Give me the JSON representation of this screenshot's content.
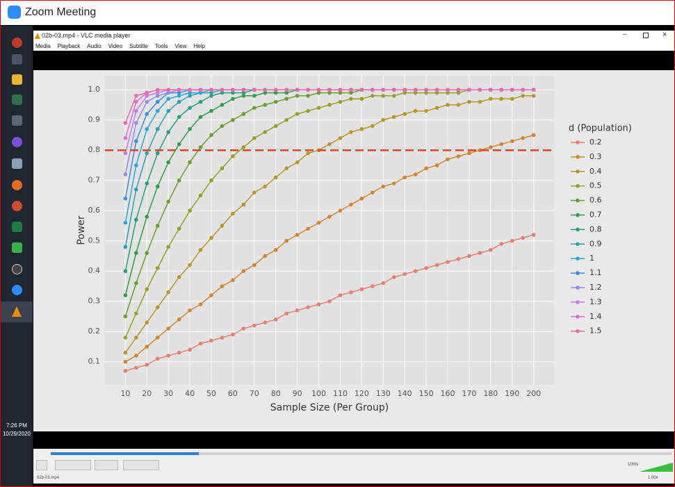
{
  "window": {
    "title": "Zoom Meeting"
  },
  "player": {
    "title": "02b-03.mp4 - VLC media player",
    "menu": [
      "Media",
      "Playback",
      "Audio",
      "Video",
      "Subtitle",
      "Tools",
      "View",
      "Help"
    ],
    "volume": "100%",
    "status_file": "02b-03.mp4",
    "speed": "1.00x"
  },
  "taskbar": {
    "time": "7:26 PM",
    "date": "10/29/2020"
  },
  "chart_data": {
    "type": "line",
    "x_label": "Sample Size (Per Group)",
    "y_label": "Power",
    "legend_title": "d (Population)",
    "x": [
      10,
      15,
      20,
      25,
      30,
      35,
      40,
      45,
      50,
      55,
      60,
      65,
      70,
      75,
      80,
      85,
      90,
      95,
      100,
      105,
      110,
      115,
      120,
      125,
      130,
      135,
      140,
      145,
      150,
      155,
      160,
      165,
      170,
      175,
      180,
      185,
      190,
      195,
      200
    ],
    "xlim": [
      0.5,
      209.5
    ],
    "xticks": [
      10,
      20,
      30,
      40,
      50,
      60,
      70,
      80,
      90,
      100,
      110,
      120,
      130,
      140,
      150,
      160,
      170,
      180,
      190,
      200
    ],
    "ylim": [
      0.0235,
      1.0465
    ],
    "yticks": [
      0.1,
      0.2,
      0.3,
      0.4,
      0.5,
      0.6,
      0.7,
      0.8,
      0.9,
      {
        "value": 1,
        "label": "1.0"
      }
    ],
    "grid": true,
    "legend": "right",
    "hline": {
      "value": 0.8,
      "color": "#e8401c"
    },
    "series": [
      {
        "name": "0.2",
        "color": "#e8806f",
        "values": [
          0.07,
          0.08,
          0.09,
          0.11,
          0.12,
          0.13,
          0.14,
          0.16,
          0.17,
          0.18,
          0.19,
          0.21,
          0.22,
          0.23,
          0.24,
          0.26,
          0.27,
          0.28,
          0.29,
          0.3,
          0.32,
          0.33,
          0.34,
          0.35,
          0.36,
          0.38,
          0.39,
          0.4,
          0.41,
          0.42,
          0.43,
          0.44,
          0.45,
          0.46,
          0.47,
          0.49,
          0.5,
          0.51,
          0.52
        ]
      },
      {
        "name": "0.3",
        "color": "#d4862f",
        "values": [
          0.1,
          0.12,
          0.15,
          0.18,
          0.21,
          0.24,
          0.27,
          0.29,
          0.32,
          0.35,
          0.37,
          0.4,
          0.42,
          0.45,
          0.47,
          0.5,
          0.52,
          0.54,
          0.56,
          0.58,
          0.6,
          0.62,
          0.64,
          0.66,
          0.68,
          0.69,
          0.71,
          0.72,
          0.74,
          0.75,
          0.77,
          0.78,
          0.79,
          0.8,
          0.81,
          0.82,
          0.83,
          0.84,
          0.85
        ]
      },
      {
        "name": "0.4",
        "color": "#b8972a",
        "values": [
          0.13,
          0.18,
          0.23,
          0.28,
          0.33,
          0.38,
          0.42,
          0.47,
          0.51,
          0.55,
          0.59,
          0.62,
          0.66,
          0.68,
          0.71,
          0.74,
          0.76,
          0.79,
          0.8,
          0.82,
          0.84,
          0.86,
          0.87,
          0.88,
          0.9,
          0.91,
          0.92,
          0.93,
          0.93,
          0.94,
          0.95,
          0.95,
          0.96,
          0.96,
          0.97,
          0.97,
          0.97,
          0.98,
          0.98
        ]
      },
      {
        "name": "0.5",
        "color": "#97a027",
        "values": [
          0.18,
          0.26,
          0.34,
          0.41,
          0.48,
          0.54,
          0.6,
          0.65,
          0.7,
          0.74,
          0.78,
          0.81,
          0.84,
          0.86,
          0.88,
          0.9,
          0.92,
          0.93,
          0.94,
          0.95,
          0.96,
          0.97,
          0.97,
          0.98,
          0.98,
          0.98,
          0.99,
          0.99,
          0.99,
          0.99,
          0.99,
          0.99,
          1,
          1,
          1,
          1,
          1,
          1,
          1
        ]
      },
      {
        "name": "0.6",
        "color": "#6a9e2d",
        "values": [
          0.25,
          0.36,
          0.46,
          0.55,
          0.63,
          0.7,
          0.76,
          0.81,
          0.85,
          0.88,
          0.9,
          0.92,
          0.94,
          0.95,
          0.96,
          0.97,
          0.98,
          0.98,
          0.99,
          0.99,
          0.99,
          0.99,
          1,
          1,
          1,
          1,
          1,
          1,
          1,
          1,
          1,
          1,
          1,
          1,
          1,
          1,
          1,
          1,
          1
        ]
      },
      {
        "name": "0.7",
        "color": "#2e9e4a",
        "values": [
          0.32,
          0.46,
          0.58,
          0.68,
          0.76,
          0.82,
          0.87,
          0.91,
          0.93,
          0.95,
          0.97,
          0.98,
          0.98,
          0.99,
          0.99,
          0.99,
          1,
          1,
          1,
          1,
          1,
          1,
          1,
          1,
          1,
          1,
          1,
          1,
          1,
          1,
          1,
          1,
          1,
          1,
          1,
          1,
          1,
          1,
          1
        ]
      },
      {
        "name": "0.8",
        "color": "#26a07e",
        "values": [
          0.4,
          0.57,
          0.69,
          0.79,
          0.86,
          0.91,
          0.94,
          0.96,
          0.98,
          0.99,
          0.99,
          0.99,
          1,
          1,
          1,
          1,
          1,
          1,
          1,
          1,
          1,
          1,
          1,
          1,
          1,
          1,
          1,
          1,
          1,
          1,
          1,
          1,
          1,
          1,
          1,
          1,
          1,
          1,
          1
        ]
      },
      {
        "name": "0.9",
        "color": "#2aa0ae",
        "values": [
          0.48,
          0.67,
          0.79,
          0.87,
          0.93,
          0.96,
          0.98,
          0.99,
          0.99,
          1,
          1,
          1,
          1,
          1,
          1,
          1,
          1,
          1,
          1,
          1,
          1,
          1,
          1,
          1,
          1,
          1,
          1,
          1,
          1,
          1,
          1,
          1,
          1,
          1,
          1,
          1,
          1,
          1,
          1
        ]
      },
      {
        "name": "1",
        "color": "#29a7d9",
        "values": [
          0.56,
          0.75,
          0.87,
          0.93,
          0.97,
          0.98,
          0.99,
          0.99,
          1,
          1,
          1,
          1,
          1,
          1,
          1,
          1,
          1,
          1,
          1,
          1,
          1,
          1,
          1,
          1,
          1,
          1,
          1,
          1,
          1,
          1,
          1,
          1,
          1,
          1,
          1,
          1,
          1,
          1,
          1
        ]
      },
      {
        "name": "1.1",
        "color": "#3c8fe0",
        "values": [
          0.64,
          0.83,
          0.92,
          0.96,
          0.99,
          0.99,
          1,
          1,
          1,
          1,
          1,
          1,
          1,
          1,
          1,
          1,
          1,
          1,
          1,
          1,
          1,
          1,
          1,
          1,
          1,
          1,
          1,
          1,
          1,
          1,
          1,
          1,
          1,
          1,
          1,
          1,
          1,
          1,
          1
        ]
      },
      {
        "name": "1.2",
        "color": "#8f8de4",
        "values": [
          0.72,
          0.89,
          0.96,
          0.98,
          0.99,
          1,
          1,
          1,
          1,
          1,
          1,
          1,
          1,
          1,
          1,
          1,
          1,
          1,
          1,
          1,
          1,
          1,
          1,
          1,
          1,
          1,
          1,
          1,
          1,
          1,
          1,
          1,
          1,
          1,
          1,
          1,
          1,
          1,
          1
        ]
      },
      {
        "name": "1.3",
        "color": "#c97ce5",
        "values": [
          0.79,
          0.93,
          0.98,
          0.99,
          1,
          1,
          1,
          1,
          1,
          1,
          1,
          1,
          1,
          1,
          1,
          1,
          1,
          1,
          1,
          1,
          1,
          1,
          1,
          1,
          1,
          1,
          1,
          1,
          1,
          1,
          1,
          1,
          1,
          1,
          1,
          1,
          1,
          1,
          1
        ]
      },
      {
        "name": "1.4",
        "color": "#e36bd8",
        "values": [
          0.84,
          0.96,
          0.99,
          1,
          1,
          1,
          1,
          1,
          1,
          1,
          1,
          1,
          1,
          1,
          1,
          1,
          1,
          1,
          1,
          1,
          1,
          1,
          1,
          1,
          1,
          1,
          1,
          1,
          1,
          1,
          1,
          1,
          1,
          1,
          1,
          1,
          1,
          1,
          1
        ]
      },
      {
        "name": "1.5",
        "color": "#ee6ba9",
        "values": [
          0.89,
          0.98,
          0.99,
          1,
          1,
          1,
          1,
          1,
          1,
          1,
          1,
          1,
          1,
          1,
          1,
          1,
          1,
          1,
          1,
          1,
          1,
          1,
          1,
          1,
          1,
          1,
          1,
          1,
          1,
          1,
          1,
          1,
          1,
          1,
          1,
          1,
          1,
          1,
          1
        ]
      }
    ]
  }
}
